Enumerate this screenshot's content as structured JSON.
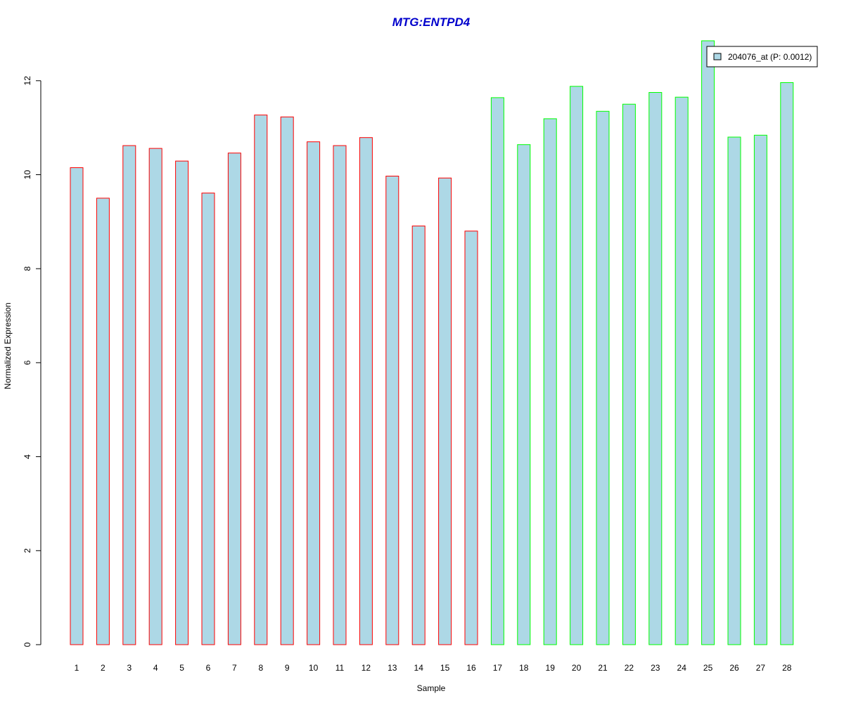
{
  "chart_data": {
    "type": "bar",
    "title": "MTG:ENTPD4",
    "title_color": "#0000CC",
    "xlabel": "Sample",
    "ylabel": "Normalized Expression",
    "ylim": [
      0,
      12.8
    ],
    "yticks": [
      0,
      2,
      4,
      6,
      8,
      10,
      12
    ],
    "categories": [
      "1",
      "2",
      "3",
      "4",
      "5",
      "6",
      "7",
      "8",
      "9",
      "10",
      "11",
      "12",
      "13",
      "14",
      "15",
      "16",
      "17",
      "18",
      "19",
      "20",
      "21",
      "22",
      "23",
      "24",
      "25",
      "26",
      "27",
      "28"
    ],
    "values": [
      10.15,
      9.5,
      10.62,
      10.56,
      10.29,
      9.61,
      10.46,
      11.27,
      11.23,
      10.7,
      10.62,
      10.79,
      9.97,
      8.91,
      9.93,
      8.8,
      11.64,
      10.64,
      11.19,
      11.88,
      11.35,
      11.5,
      11.75,
      11.65,
      12.85,
      10.8,
      10.84,
      11.96
    ],
    "groups": [
      1,
      1,
      1,
      1,
      1,
      1,
      1,
      1,
      1,
      1,
      1,
      1,
      1,
      1,
      1,
      1,
      2,
      2,
      2,
      2,
      2,
      2,
      2,
      2,
      2,
      2,
      2,
      2
    ],
    "bar_fill": "#ADD8E6",
    "group_colors": {
      "1": "#FF0000",
      "2": "#00FF00"
    },
    "legend": {
      "label": "204076_at (P: 0.0012)",
      "placement": "top-right"
    },
    "grid": false
  }
}
